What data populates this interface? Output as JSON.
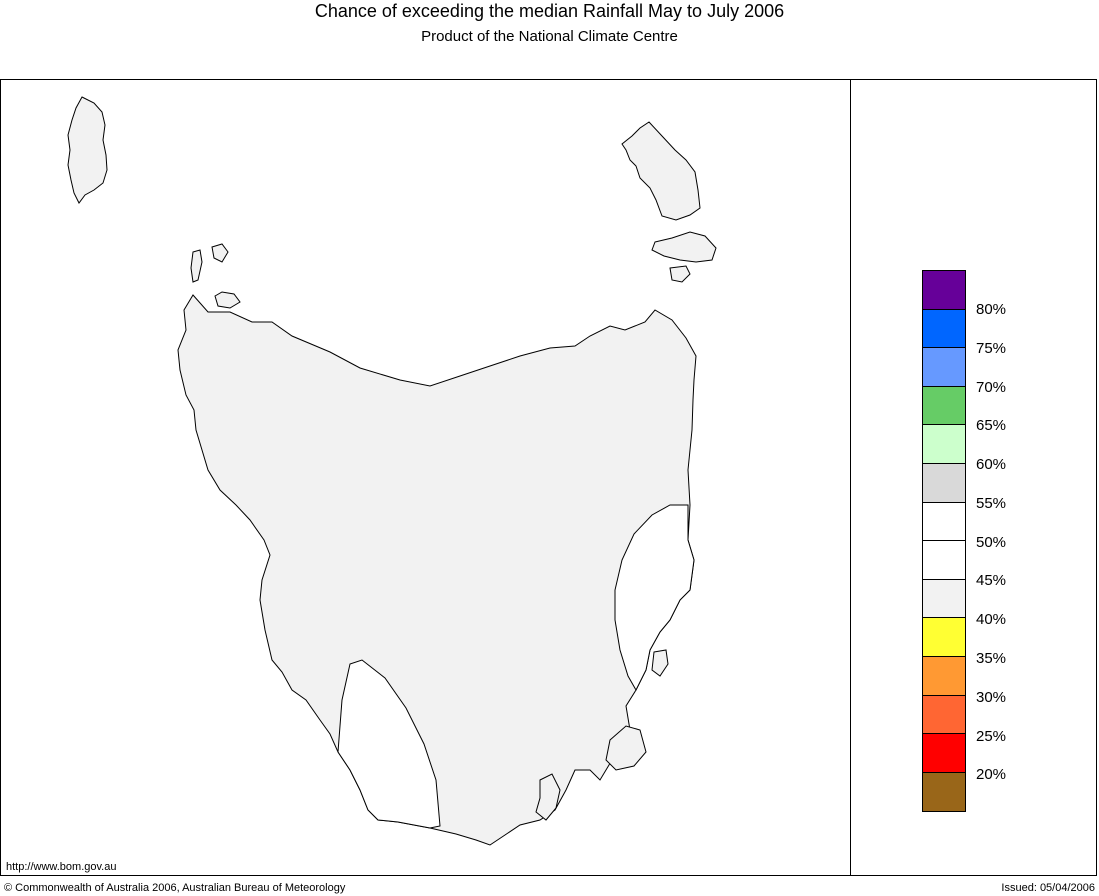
{
  "header": {
    "title": "Chance of exceeding the median Rainfall May to July 2006",
    "subtitle": "Product of the National Climate Centre"
  },
  "map": {
    "land_fill": "#f2f2f2",
    "zone_white_fill": "#ffffff",
    "outline_color": "#000000"
  },
  "legend": {
    "colors": [
      "#660099",
      "#0066ff",
      "#6699ff",
      "#66cc66",
      "#ccffcc",
      "#d9d9d9",
      "#ffffff",
      "#ffffff",
      "#f2f2f2",
      "#ffff33",
      "#ff9933",
      "#ff6633",
      "#ff0000",
      "#996619"
    ],
    "labels": [
      "80%",
      "75%",
      "70%",
      "65%",
      "60%",
      "55%",
      "50%",
      "45%",
      "40%",
      "35%",
      "30%",
      "25%",
      "20%"
    ]
  },
  "footer": {
    "url": "http://www.bom.gov.au",
    "copyright": "© Commonwealth of Australia 2006, Australian Bureau of Meteorology",
    "issued": "Issued: 05/04/2006"
  }
}
